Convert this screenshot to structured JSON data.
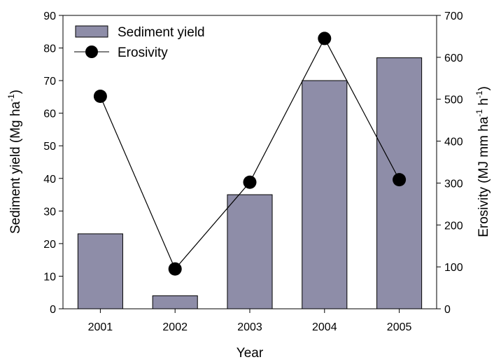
{
  "chart_data": {
    "type": "bar",
    "xlabel": "Year",
    "categories": [
      "2001",
      "2002",
      "2003",
      "2004",
      "2005"
    ],
    "y_left": {
      "label_main": "Sediment yield (Mg ha",
      "label_sup": "-1",
      "label_end": ")",
      "range": [
        0,
        90
      ],
      "ticks": [
        0,
        10,
        20,
        30,
        40,
        50,
        60,
        70,
        80,
        90
      ]
    },
    "y_right": {
      "label_main": "Erosivity (MJ mm ha",
      "label_sup1": "-1",
      "label_mid": " h",
      "label_sup2": "-1",
      "label_end": ")",
      "range": [
        0,
        700
      ],
      "ticks": [
        0,
        100,
        200,
        300,
        400,
        500,
        600,
        700
      ]
    },
    "series": [
      {
        "name": "Sediment yield",
        "kind": "bar",
        "axis": "left",
        "values": [
          23,
          4,
          35,
          70,
          77
        ],
        "color": "#8e8da8"
      },
      {
        "name": "Erosivity",
        "kind": "line",
        "axis": "right",
        "values": [
          507,
          95,
          302,
          645,
          308
        ],
        "color": "#000000"
      }
    ],
    "legend": {
      "placement": "top-left"
    },
    "grid": false
  }
}
